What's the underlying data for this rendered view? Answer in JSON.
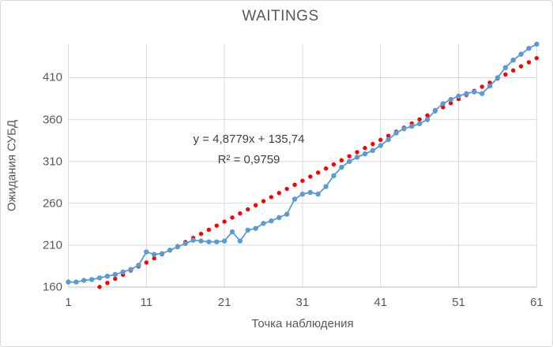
{
  "chart_data": {
    "type": "line",
    "title": "WAITINGS",
    "xlabel": "Точка наблюдения",
    "ylabel": "Ожидания СУБД",
    "xlim": [
      1,
      61
    ],
    "ylim": [
      160,
      450
    ],
    "x_ticks": [
      1,
      11,
      21,
      31,
      41,
      51,
      61
    ],
    "y_ticks": [
      160,
      210,
      260,
      310,
      360,
      410
    ],
    "grid": true,
    "legend": "none",
    "series_color": "#5B9BD5",
    "text_color": "#595959",
    "grid_color": "#D9D9D9",
    "axis_color": "#BFBFBF",
    "values": [
      166,
      166,
      168,
      169,
      171,
      173,
      175,
      178,
      181,
      186,
      202,
      199,
      200,
      204,
      208,
      212,
      216,
      215,
      214,
      214,
      215,
      226,
      215,
      228,
      230,
      236,
      239,
      243,
      247,
      265,
      271,
      273,
      271,
      280,
      293,
      303,
      310,
      315,
      319,
      323,
      329,
      336,
      344,
      349,
      352,
      355,
      360,
      371,
      379,
      384,
      388,
      391,
      393,
      391,
      400,
      410,
      422,
      431,
      438,
      445,
      450
    ],
    "trendline": {
      "equation_label": "y = 4,8779x + 135,74",
      "r2_label": "R² = 0,9759",
      "slope": 4.8779,
      "intercept": 135.74,
      "x_start": 5,
      "x_end": 61,
      "dot_step": 1,
      "color": "#FF0000",
      "style": "dotted"
    }
  }
}
